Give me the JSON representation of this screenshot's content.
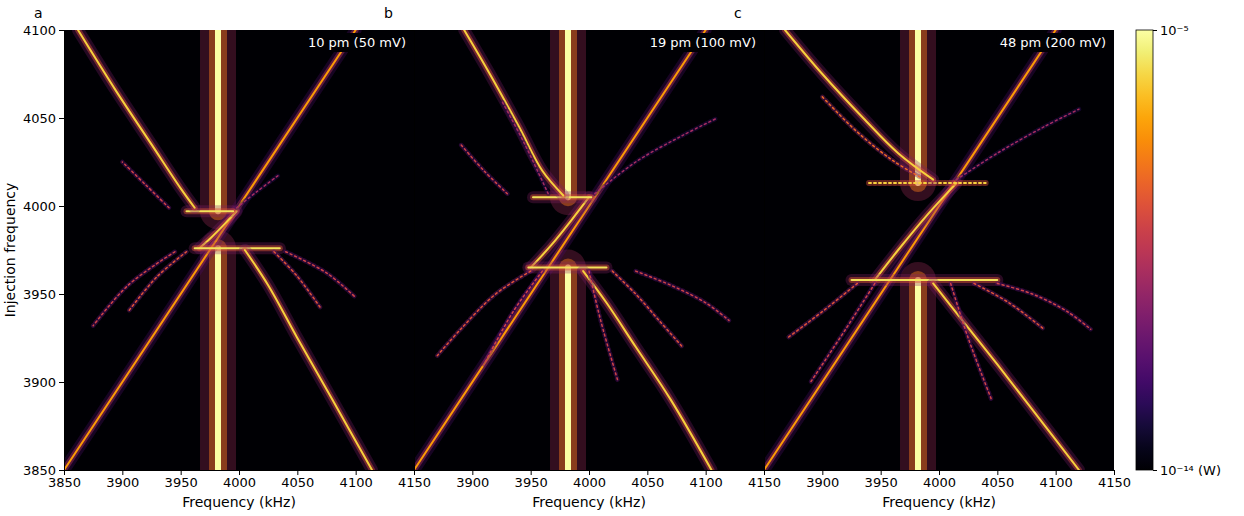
{
  "chart_data": [
    {
      "type": "line",
      "label": "a",
      "title": "10 pm (50 mV)",
      "xlabel": "Frequency (kHz)",
      "ylabel": "Injection frequency",
      "xlim": [
        3850,
        4150
      ],
      "xticks": [
        3850,
        3900,
        3950,
        4000,
        4050,
        4100,
        4150
      ],
      "ylim": [
        3850,
        4100
      ],
      "yticks": [
        3850,
        3900,
        3950,
        4000,
        4050,
        4100
      ],
      "series": [
        {
          "x": [
            3982,
            3982
          ],
          "values": [
            3997,
            4100
          ],
          "power": 1e-05
        },
        {
          "x": [
            3982,
            3982
          ],
          "values": [
            3850,
            3976
          ],
          "power": 1e-05
        },
        {
          "x": [
            3850,
            4100
          ],
          "values": [
            3850,
            4100
          ],
          "power": 1e-07
        },
        {
          "x": [
            3966,
            3976,
            3988,
            3998
          ],
          "values": [
            3976,
            3982,
            3990,
            3997
          ],
          "power": 1e-06
        },
        {
          "x": [
            3955,
            3995
          ],
          "values": [
            3997,
            3997
          ],
          "power": 2e-06
        },
        {
          "x": [
            3962,
            4035
          ],
          "values": [
            3976,
            3976
          ],
          "power": 2e-06
        },
        {
          "x": [
            3862,
            3895,
            3925,
            3950,
            3962
          ],
          "values": [
            4100,
            4065,
            4035,
            4010,
            3999
          ],
          "power": 1e-06
        },
        {
          "x": [
            4005,
            4025,
            4050,
            4080,
            4114
          ],
          "values": [
            3975,
            3955,
            3925,
            3890,
            3850
          ],
          "power": 1e-06
        },
        {
          "x": [
            3940,
            3920,
            3900
          ],
          "values": [
            3999,
            4012,
            4025
          ],
          "power": 1e-09,
          "line_style": "dotted"
        },
        {
          "x": [
            3998,
            4015,
            4035
          ],
          "values": [
            3999,
            4008,
            4018
          ],
          "power": 1e-10,
          "line_style": "dotted"
        },
        {
          "x": [
            3955,
            3930,
            3905
          ],
          "values": [
            3974,
            3960,
            3940
          ],
          "power": 3e-09,
          "line_style": "dotted"
        },
        {
          "x": [
            3945,
            3905,
            3875
          ],
          "values": [
            3974,
            3955,
            3932
          ],
          "power": 1e-09,
          "line_style": "dotted"
        },
        {
          "x": [
            4030,
            4050,
            4070
          ],
          "values": [
            3974,
            3960,
            3942
          ],
          "power": 3e-09,
          "line_style": "dotted"
        },
        {
          "x": [
            4040,
            4075,
            4100
          ],
          "values": [
            3974,
            3962,
            3948
          ],
          "power": 1e-09,
          "line_style": "dotted"
        }
      ]
    },
    {
      "type": "line",
      "label": "b",
      "title": "19 pm (100 mV)",
      "xlabel": "Frequency (kHz)",
      "tick_labels": "x",
      "xlim": [
        3850,
        4150
      ],
      "xticks": [
        3900,
        3950,
        4000,
        4050,
        4100,
        4150
      ],
      "ylim": [
        3850,
        4100
      ],
      "series": [
        {
          "x": [
            3982,
            3982
          ],
          "values": [
            4005,
            4100
          ],
          "power": 1e-05
        },
        {
          "x": [
            3982,
            3982
          ],
          "values": [
            3850,
            3965
          ],
          "power": 1e-05
        },
        {
          "x": [
            3850,
            4100
          ],
          "values": [
            3850,
            4100
          ],
          "power": 1e-07
        },
        {
          "x": [
            3950,
            3968,
            3985,
            4000
          ],
          "values": [
            3965,
            3978,
            3992,
            4005
          ],
          "power": 1e-06
        },
        {
          "x": [
            3952,
            4002
          ],
          "values": [
            4005,
            4005
          ],
          "power": 2e-06
        },
        {
          "x": [
            3948,
            4015
          ],
          "values": [
            3965,
            3965
          ],
          "power": 2e-06
        },
        {
          "x": [
            3893,
            3915,
            3940,
            3960,
            3978
          ],
          "values": [
            4100,
            4075,
            4045,
            4020,
            4006
          ],
          "power": 1e-06
        },
        {
          "x": [
            3995,
            4015,
            4040,
            4070,
            4105
          ],
          "values": [
            3963,
            3945,
            3920,
            3890,
            3850
          ],
          "power": 1e-06
        },
        {
          "x": [
            3930,
            3910,
            3890
          ],
          "values": [
            4007,
            4020,
            4035
          ],
          "power": 1e-09,
          "line_style": "dotted"
        },
        {
          "x": [
            3965,
            3945,
            3925
          ],
          "values": [
            4007,
            4035,
            4060
          ],
          "power": 1e-10,
          "line_style": "dotted"
        },
        {
          "x": [
            4005,
            4040,
            4080,
            4110
          ],
          "values": [
            4007,
            4025,
            4040,
            4050
          ],
          "power": 1e-10,
          "line_style": "dotted"
        },
        {
          "x": [
            3950,
            3920,
            3890,
            3870
          ],
          "values": [
            3963,
            3950,
            3930,
            3915
          ],
          "power": 3e-09,
          "line_style": "dotted"
        },
        {
          "x": [
            3960,
            3935,
            3910
          ],
          "values": [
            3963,
            3940,
            3910
          ],
          "power": 1e-09,
          "line_style": "dotted"
        },
        {
          "x": [
            4020,
            4040,
            4060,
            4080
          ],
          "values": [
            3963,
            3950,
            3935,
            3920
          ],
          "power": 3e-09,
          "line_style": "dotted"
        },
        {
          "x": [
            4040,
            4070,
            4100,
            4120
          ],
          "values": [
            3963,
            3955,
            3945,
            3935
          ],
          "power": 1e-09,
          "line_style": "dotted"
        },
        {
          "x": [
            4000,
            4010,
            4025
          ],
          "values": [
            3963,
            3935,
            3900
          ],
          "power": 1e-09,
          "line_style": "dotted"
        }
      ]
    },
    {
      "type": "line",
      "label": "c",
      "title": "48 pm (200 mV)",
      "xlabel": "Frequency (kHz)",
      "tick_labels": "x",
      "xlim": [
        3850,
        4150
      ],
      "xticks": [
        3900,
        3950,
        4000,
        4050,
        4100,
        4150
      ],
      "ylim": [
        3850,
        4100
      ],
      "colorbar": {
        "range": [
          1e-14,
          1e-05
        ],
        "log": true,
        "ticks": [
          {
            "value": 1e-05,
            "label": "10⁻⁵"
          },
          {
            "value": 1e-14,
            "label": "10⁻¹⁴ (W)"
          }
        ]
      },
      "series": [
        {
          "x": [
            3982,
            3982
          ],
          "values": [
            4013,
            4100
          ],
          "power": 1e-05
        },
        {
          "x": [
            3982,
            3982
          ],
          "values": [
            3850,
            3958
          ],
          "power": 1e-05
        },
        {
          "x": [
            3850,
            4100
          ],
          "values": [
            3850,
            4100
          ],
          "power": 1e-07
        },
        {
          "x": [
            3945,
            3965,
            3990,
            4015
          ],
          "values": [
            3958,
            3975,
            3995,
            4013
          ],
          "power": 1e-06
        },
        {
          "x": [
            3940,
            4040
          ],
          "values": [
            4013,
            4013
          ],
          "power": 1e-06,
          "line_style": "dotted"
        },
        {
          "x": [
            3925,
            4050
          ],
          "values": [
            3958,
            3958
          ],
          "power": 2e-06
        },
        {
          "x": [
            3868,
            3900,
            3935,
            3965,
            3995
          ],
          "values": [
            4100,
            4075,
            4050,
            4030,
            4015
          ],
          "power": 1e-06
        },
        {
          "x": [
            3900,
            3930,
            3960,
            3985
          ],
          "values": [
            4062,
            4042,
            4026,
            4016
          ],
          "power": 1e-08,
          "line_style": "dotted"
        },
        {
          "x": [
            3995,
            4020,
            4050,
            4085,
            4120
          ],
          "values": [
            3956,
            3935,
            3910,
            3880,
            3850
          ],
          "power": 1e-06
        },
        {
          "x": [
            3930,
            3900,
            3870
          ],
          "values": [
            3956,
            3940,
            3925
          ],
          "power": 3e-09,
          "line_style": "dotted"
        },
        {
          "x": [
            3945,
            3920,
            3890
          ],
          "values": [
            3956,
            3930,
            3900
          ],
          "power": 1e-09,
          "line_style": "dotted"
        },
        {
          "x": [
            4030,
            4060,
            4090
          ],
          "values": [
            3956,
            3945,
            3930
          ],
          "power": 3e-09,
          "line_style": "dotted"
        },
        {
          "x": [
            4050,
            4080,
            4110,
            4130
          ],
          "values": [
            3956,
            3950,
            3940,
            3930
          ],
          "power": 1e-09,
          "line_style": "dotted"
        },
        {
          "x": [
            4010,
            4025,
            4045
          ],
          "values": [
            3956,
            3925,
            3890
          ],
          "power": 1e-09,
          "line_style": "dotted"
        },
        {
          "x": [
            4015,
            4050,
            4090,
            4120
          ],
          "values": [
            4015,
            4030,
            4045,
            4055
          ],
          "power": 1e-10,
          "line_style": "dotted"
        }
      ]
    }
  ]
}
